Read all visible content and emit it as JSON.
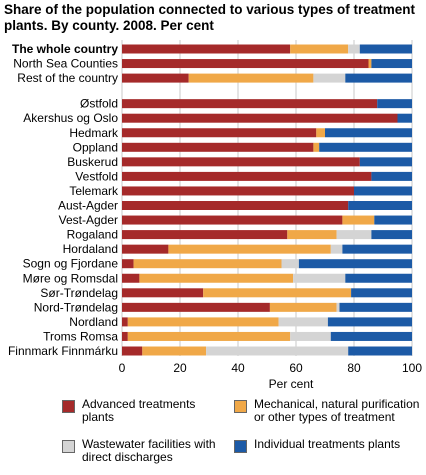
{
  "title": "Share of the population connected to various types of treatment plants. By county. 2008. Per cent",
  "chart_data": {
    "type": "bar",
    "orientation": "horizontal",
    "stacked": true,
    "title": "Share of the population connected to various types of treatment plants. By county. 2008. Per cent",
    "xlabel": "Per cent",
    "ylabel": "",
    "xlim": [
      0,
      100
    ],
    "xticks": [
      "0",
      "20",
      "40",
      "60",
      "80",
      "100"
    ],
    "grid": "vertical",
    "legend_position": "bottom",
    "categories": [
      "The whole country",
      "North Sea Counties",
      "Rest of the country",
      "Østfold",
      "Akershus og Oslo",
      "Hedmark",
      "Oppland",
      "Buskerud",
      "Vestfold",
      "Telemark",
      "Aust-Agder",
      "Vest-Agder",
      "Rogaland",
      "Hordaland",
      "Sogn og Fjordane",
      "Møre og Romsdal",
      "Sør-Trøndelag",
      "Nord-Trøndelag",
      "Nordland",
      "Troms Romsa",
      "Finnmark Finnmárku"
    ],
    "bold_categories": [
      "The whole country"
    ],
    "series": [
      {
        "name": "Advanced treatments plants",
        "color": "#a52a2a",
        "values": [
          58,
          85,
          23,
          88,
          95,
          67,
          66,
          82,
          86,
          80,
          78,
          76,
          57,
          16,
          4,
          6,
          28,
          51,
          2,
          2,
          7
        ]
      },
      {
        "name": "Mechanical, natural purification or other types of treatment",
        "color": "#f0a848",
        "values": [
          20,
          1,
          43,
          0,
          0,
          3,
          2,
          0,
          0,
          0,
          0,
          11,
          17,
          56,
          51,
          53,
          51,
          23,
          52,
          56,
          22
        ]
      },
      {
        "name": "Wastewater facilities with direct discharges",
        "color": "#d4d4d4",
        "values": [
          4,
          0,
          11,
          0,
          0,
          0,
          0,
          0,
          0,
          0,
          0,
          0,
          12,
          4,
          6,
          18,
          0,
          1,
          17,
          14,
          49
        ]
      },
      {
        "name": "Individual treatments plants",
        "color": "#1c5aa6",
        "values": [
          18,
          14,
          23,
          12,
          5,
          30,
          32,
          18,
          14,
          20,
          22,
          13,
          14,
          24,
          39,
          23,
          21,
          25,
          29,
          28,
          22
        ]
      }
    ]
  }
}
